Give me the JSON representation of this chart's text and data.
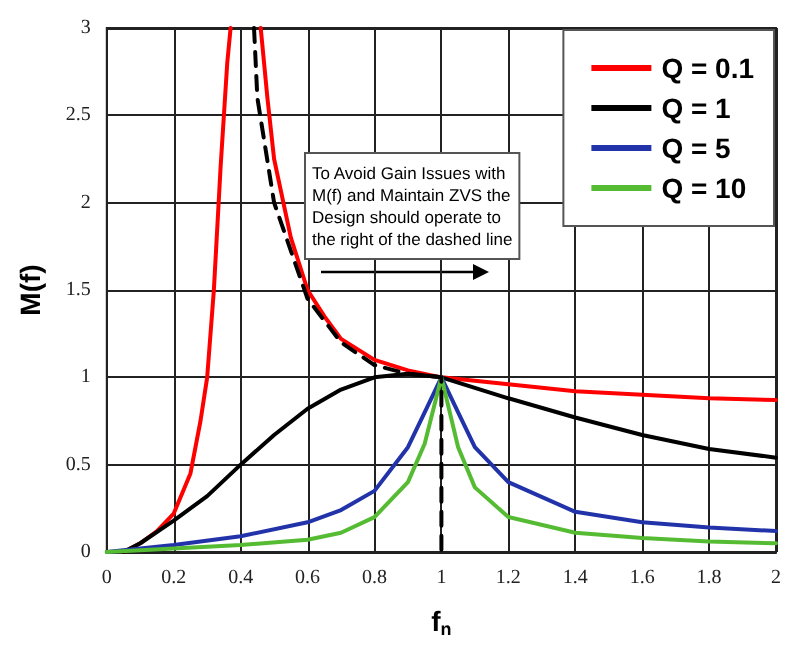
{
  "chart_data": {
    "type": "line",
    "xlabel": "f$_{n}$",
    "ylabel": "M(f)",
    "xlim": [
      0,
      2
    ],
    "xticks": [
      0,
      0.2,
      0.4,
      0.6,
      0.8,
      1,
      1.2,
      1.4,
      1.6,
      1.8,
      2
    ],
    "ylim": [
      0,
      3
    ],
    "yticks": [
      0,
      0.5,
      1,
      1.5,
      2,
      2.5,
      3
    ],
    "grid": true,
    "legend": "top right",
    "marker": "none",
    "annotations": [
      "To Avoid Gain Issues with\nM(f) and Maintain ZVS the\nDesign should operate to\nthe right of the dashed line"
    ],
    "series": [
      {
        "name": "Q = 0.1",
        "color": "#ff0000",
        "x": [
          0.05,
          0.1,
          0.15,
          0.2,
          0.25,
          0.28,
          0.3,
          0.32,
          0.34,
          0.36,
          0.37,
          0.4,
          0.46,
          0.48,
          0.5,
          0.55,
          0.6,
          0.65,
          0.7,
          0.8,
          0.9,
          1,
          1.2,
          1.4,
          1.6,
          1.8,
          2
        ],
        "values": [
          0,
          0.05,
          0.12,
          0.22,
          0.45,
          0.75,
          1.0,
          1.5,
          2.2,
          2.8,
          3,
          null,
          3,
          2.6,
          2.25,
          1.8,
          1.5,
          1.35,
          1.22,
          1.1,
          1.04,
          1,
          0.96,
          0.92,
          0.9,
          0.88,
          0.87
        ]
      },
      {
        "name": "Q = 1",
        "color": "#000000",
        "x": [
          0.05,
          0.1,
          0.2,
          0.3,
          0.4,
          0.5,
          0.6,
          0.7,
          0.8,
          0.9,
          1,
          1.2,
          1.4,
          1.6,
          1.8,
          2
        ],
        "values": [
          0,
          0.05,
          0.18,
          0.32,
          0.5,
          0.67,
          0.82,
          0.93,
          1.0,
          1.02,
          1,
          0.88,
          0.77,
          0.67,
          0.59,
          0.54
        ]
      },
      {
        "name": "Q = 5",
        "color": "#2233aa",
        "x": [
          0,
          0.2,
          0.4,
          0.6,
          0.7,
          0.8,
          0.9,
          0.95,
          1,
          1.05,
          1.1,
          1.2,
          1.4,
          1.6,
          1.8,
          2
        ],
        "values": [
          0,
          0.04,
          0.09,
          0.17,
          0.24,
          0.35,
          0.6,
          0.8,
          1,
          0.8,
          0.6,
          0.4,
          0.23,
          0.17,
          0.14,
          0.12
        ]
      },
      {
        "name": "Q = 10",
        "color": "#55bb33",
        "x": [
          0,
          0.2,
          0.4,
          0.6,
          0.7,
          0.8,
          0.9,
          0.95,
          1,
          1.05,
          1.1,
          1.2,
          1.4,
          1.6,
          1.8,
          2
        ],
        "values": [
          0,
          0.02,
          0.04,
          0.07,
          0.11,
          0.2,
          0.4,
          0.62,
          1,
          0.6,
          0.37,
          0.2,
          0.11,
          0.08,
          0.06,
          0.05
        ]
      },
      {
        "color": "#000000",
        "line_style": "dashed",
        "x": [
          0.44,
          0.45,
          0.5,
          0.6,
          0.7,
          0.8,
          0.9,
          1,
          1
        ],
        "values": [
          3,
          2.6,
          2.0,
          1.45,
          1.2,
          1.07,
          1.02,
          1,
          0
        ]
      }
    ]
  }
}
